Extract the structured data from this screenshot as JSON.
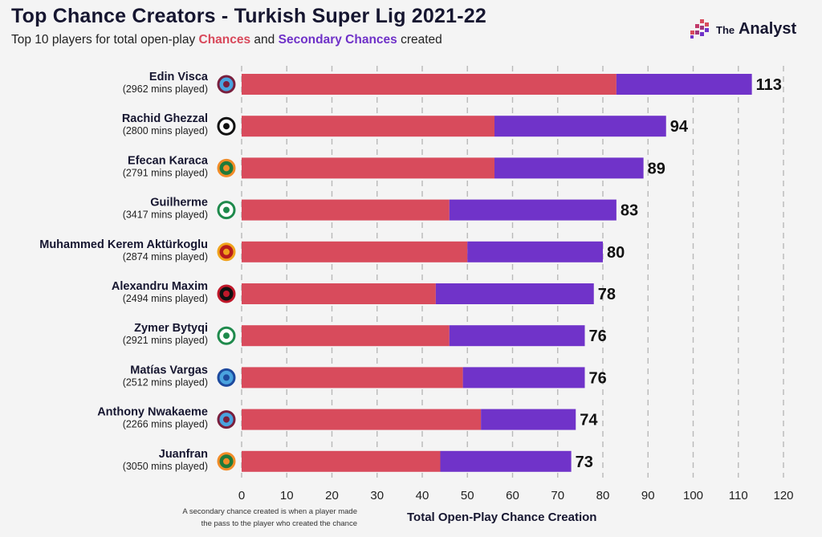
{
  "header": {
    "title": "Top Chance Creators - Turkish Super Lig 2021-22",
    "subtitle_pre": "Top 10 players for total open-play ",
    "subtitle_chances": "Chances",
    "subtitle_mid": " and ",
    "subtitle_secondary": "Secondary Chances",
    "subtitle_post": " created"
  },
  "brand": {
    "the": "The",
    "name": "Analyst"
  },
  "footnote": {
    "line1": "A secondary chance created is when a player made",
    "line2": "the pass to the player who created the chance"
  },
  "colors": {
    "chances": "#d84b5c",
    "secondary": "#7033c9",
    "background": "#f4f4f4",
    "text": "#161630"
  },
  "chart_data": {
    "type": "bar",
    "orientation": "horizontal",
    "stacked": true,
    "title": "Top Chance Creators - Turkish Super Lig 2021-22",
    "xlabel": "Total Open-Play Chance Creation",
    "xlim": [
      0,
      120
    ],
    "xticks": [
      0,
      10,
      20,
      30,
      40,
      50,
      60,
      70,
      80,
      90,
      100,
      110,
      120
    ],
    "grid": "vertical dashed",
    "categories": [
      "Edin Visca",
      "Rachid Ghezzal",
      "Efecan Karaca",
      "Guilherme",
      "Muhammed Kerem Aktürkoglu",
      "Alexandru Maxim",
      "Zymer Bytyqi",
      "Matías Vargas",
      "Anthony Nwakaeme",
      "Juanfran"
    ],
    "minutes": [
      "(2962 mins played)",
      "(2800 mins played)",
      "(2791 mins played)",
      "(3417 mins played)",
      "(2874 mins played)",
      "(2494 mins played)",
      "(2921 mins played)",
      "(2512 mins played)",
      "(2266 mins played)",
      "(3050 mins played)"
    ],
    "club_badges": [
      "trabzonspor-badge",
      "besiktas-badge",
      "alanyaspor-badge",
      "konyaspor-badge",
      "galatasaray-badge",
      "gaziantep-badge",
      "konyaspor-badge",
      "adana-demirspor-badge",
      "trabzonspor-badge",
      "alanyaspor-badge"
    ],
    "series": [
      {
        "name": "Chances",
        "values": [
          83,
          56,
          56,
          46,
          50,
          43,
          46,
          49,
          53,
          44
        ]
      },
      {
        "name": "Secondary Chances",
        "values": [
          30,
          38,
          33,
          37,
          30,
          35,
          30,
          27,
          21,
          29
        ]
      }
    ],
    "totals": [
      113,
      94,
      89,
      83,
      80,
      78,
      76,
      76,
      74,
      73
    ]
  }
}
